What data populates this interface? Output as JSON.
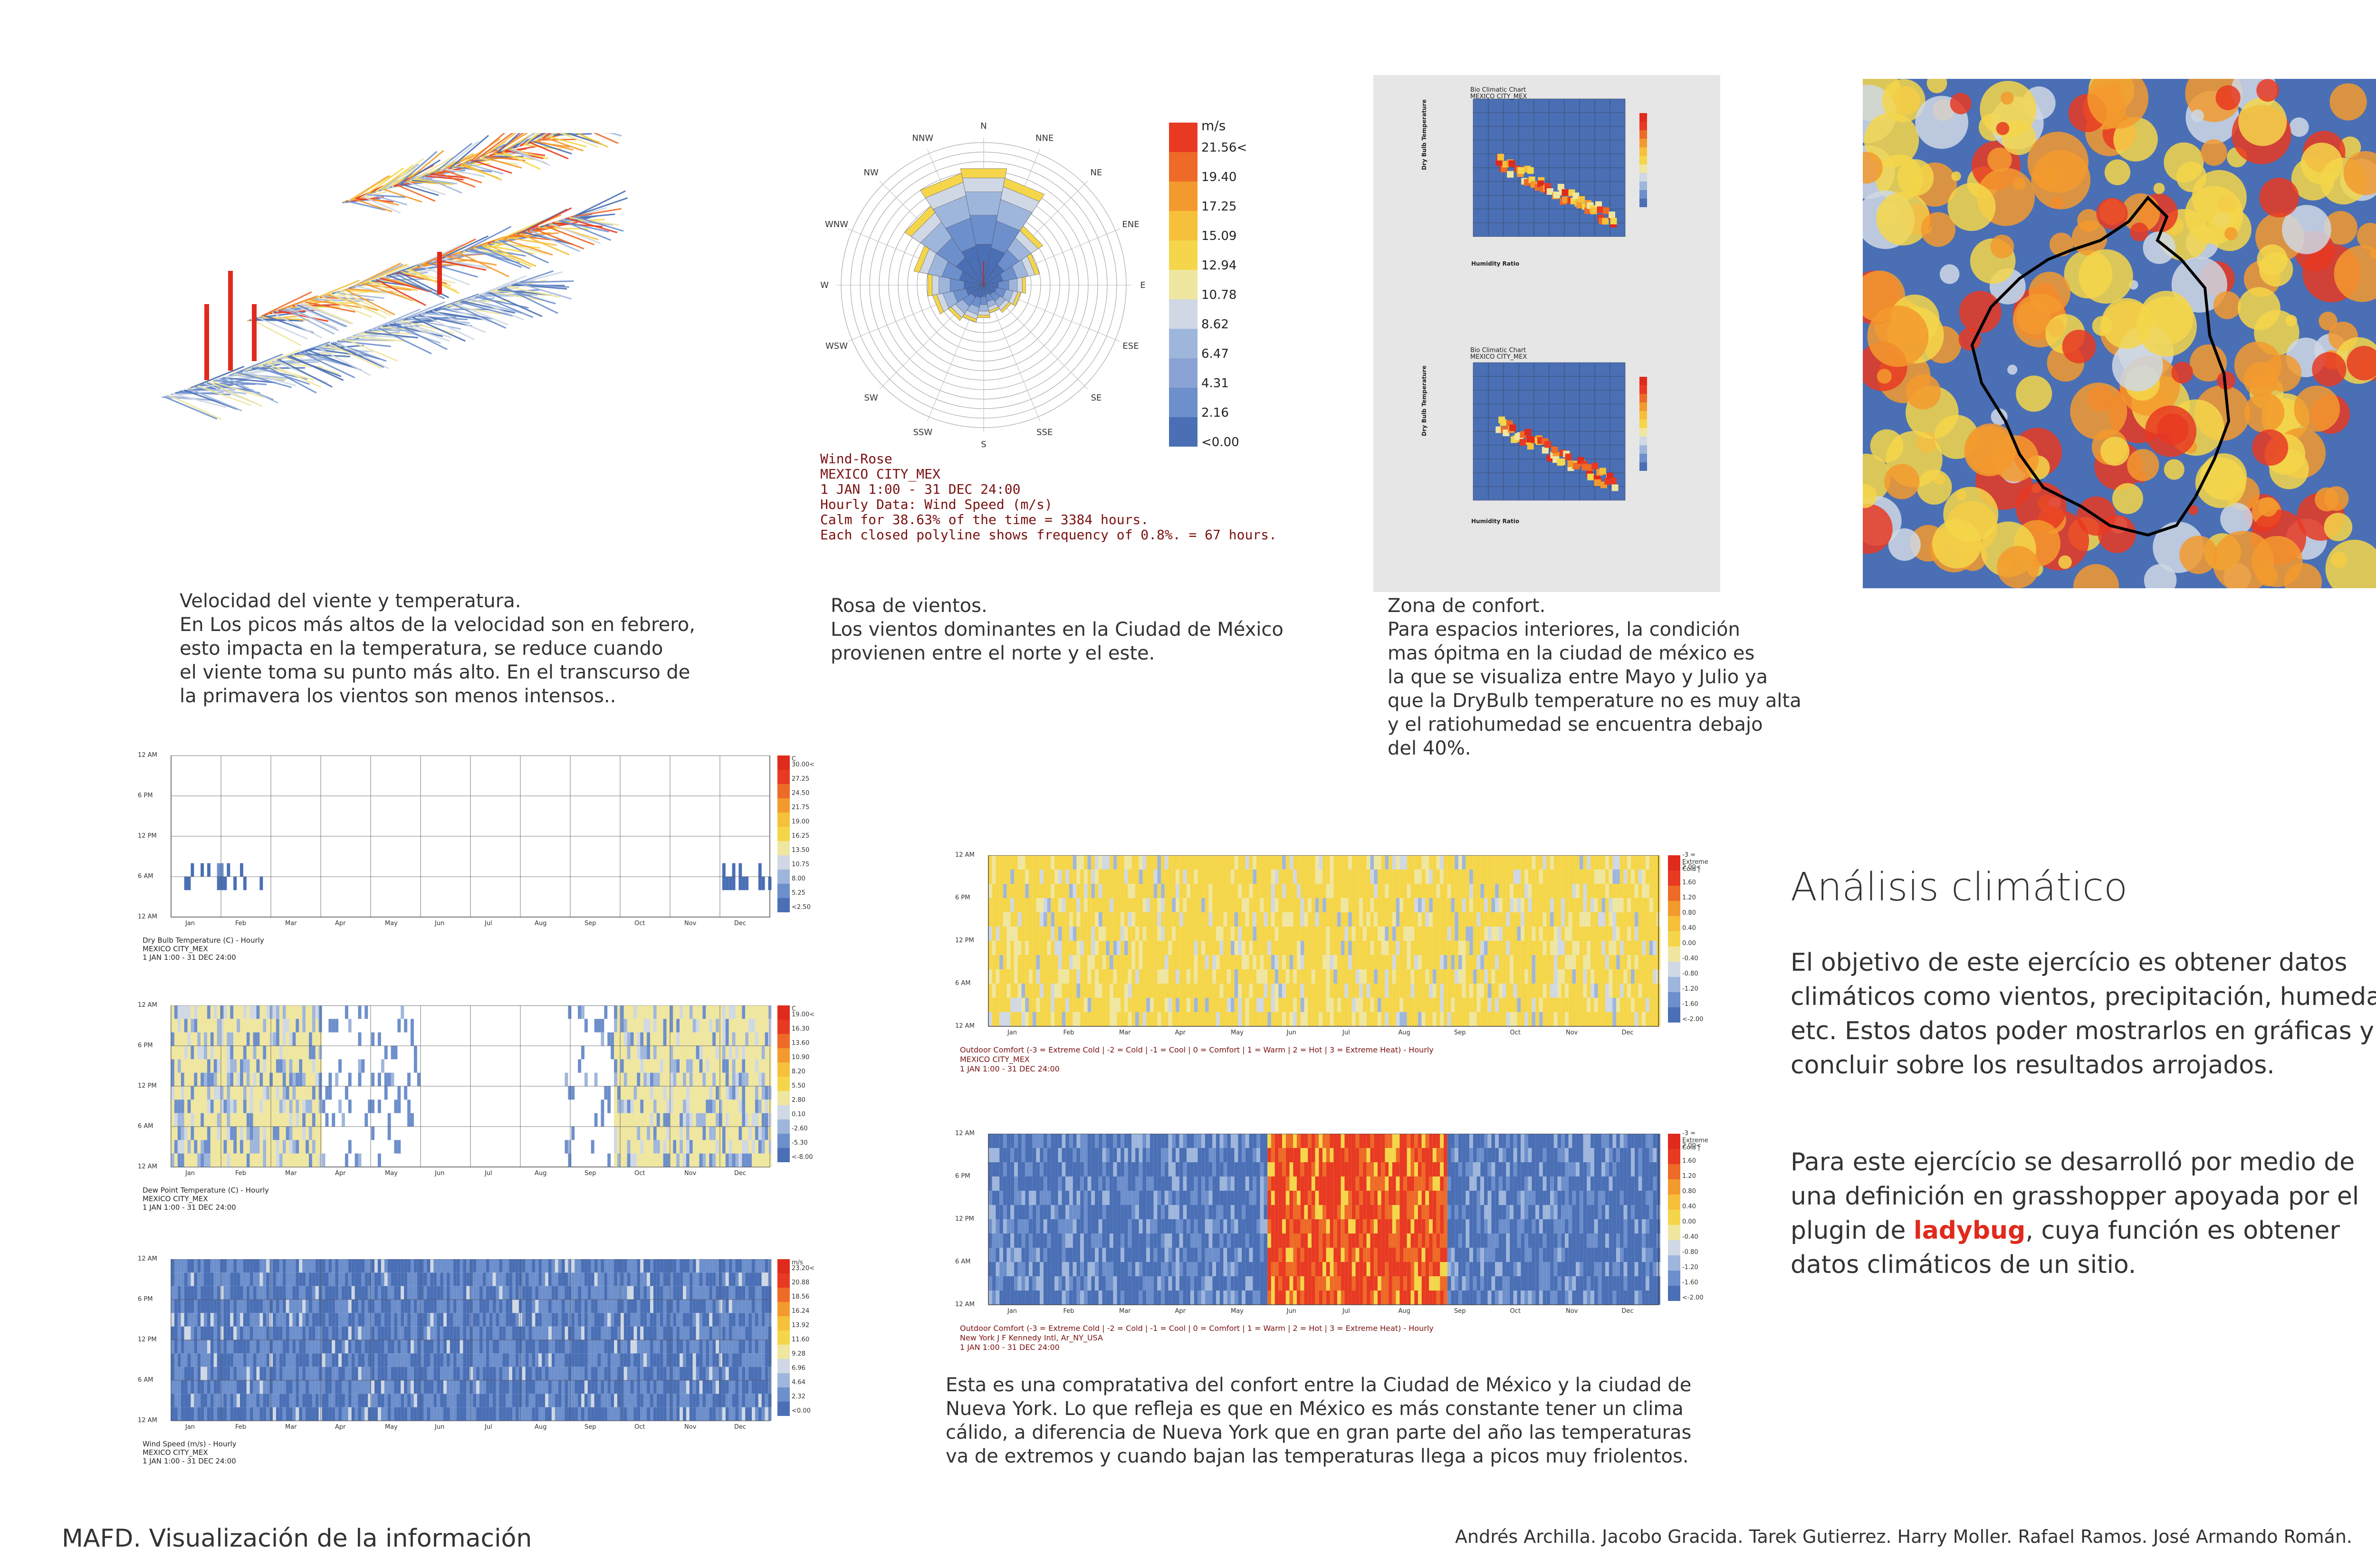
{
  "captions": {
    "wind_temp": "Velocidad del viente y temperatura.\nEn Los picos más altos de la velocidad son en febrero,\nesto impacta en la temperatura, se reduce cuando\nel viente toma su punto más alto. En el transcurso de\nla primavera los vientos son menos intensos..",
    "wind_rose": "Rosa de vientos.\nLos vientos dominantes en la Ciudad de México\nprovienen entre el norte y el este.",
    "comfort_zone": "Zona de confort.\nPara espacios interiores, la condición\nmas ópitma en la ciudad de méxico es\nla que se visualiza entre Mayo y Julio ya\nque la DryBulb temperature no es muy alta\ny el ratiohumedad se encuentra debajo\ndel 40%.",
    "comparison": "Esta es una compratativa del confort entre la Ciudad de México y la ciudad de\nNueva York. Lo que refleja es que en México es más constante tener un clima\ncálido, a diferencia de Nueva York que en gran parte del año las temperaturas\nva de extremos y cuando bajan las temperaturas llega a picos muy friolentos."
  },
  "wind_rose": {
    "directions": [
      "N",
      "NNE",
      "NE",
      "ENE",
      "E",
      "ESE",
      "SE",
      "SSE",
      "S",
      "SSW",
      "SW",
      "WSW",
      "W",
      "WNW",
      "NW",
      "NNW"
    ],
    "unit": "m/s",
    "legend": [
      "21.56<",
      "19.40",
      "17.25",
      "15.09",
      "12.94",
      "10.78",
      "8.62",
      "6.47",
      "4.31",
      "2.16",
      "<0.00"
    ],
    "info": [
      "Wind-Rose",
      "MEXICO CITY_MEX",
      "1 JAN 1:00 - 31 DEC 24:00",
      "Hourly Data: Wind Speed (m/s)",
      "Calm for 38.63% of the time = 3384 hours.",
      "Each closed polyline shows frequency of 0.8%. = 67 hours."
    ]
  },
  "bio_chart": {
    "title1": "Bio Climatic Chart",
    "sub1": "MEXICO CITY_MEX",
    "title2": "Bio Climatic Chart",
    "sub2": "MEXICO CITY_MEX",
    "ylabel": "Dry Bulb Temperature",
    "xlabel": "Humidity Ratio"
  },
  "months": [
    "Jan",
    "Feb",
    "Mar",
    "Apr",
    "May",
    "Jun",
    "Jul",
    "Aug",
    "Sep",
    "Oct",
    "Nov",
    "Dec"
  ],
  "hours": [
    "12 AM",
    "6 PM",
    "12 PM",
    "6 AM",
    "12 AM"
  ],
  "hourly_charts": {
    "dry_bulb": {
      "unit": "C",
      "legend": [
        "30.00<",
        "27.25",
        "24.50",
        "21.75",
        "19.00",
        "16.25",
        "13.50",
        "10.75",
        "8.00",
        "5.25",
        "<2.50"
      ],
      "meta": "Dry Bulb Temperature (C) - Hourly\nMEXICO CITY_MEX\n1 JAN 1:00 - 31 DEC 24:00"
    },
    "dew_point": {
      "unit": "C",
      "legend": [
        "19.00<",
        "16.30",
        "13.60",
        "10.90",
        "8.20",
        "5.50",
        "2.80",
        "0.10",
        "-2.60",
        "-5.30",
        "<-8.00"
      ],
      "meta": "Dew Point Temperature (C) - Hourly\nMEXICO CITY_MEX\n1 JAN 1:00 - 31 DEC 24:00"
    },
    "wind_speed": {
      "unit": "m/s",
      "legend": [
        "23.20<",
        "20.88",
        "18.56",
        "16.24",
        "13.92",
        "11.60",
        "9.28",
        "6.96",
        "4.64",
        "2.32",
        "<0.00"
      ],
      "meta": "Wind Speed (m/s) - Hourly\nMEXICO CITY_MEX\n1 JAN 1:00 - 31 DEC 24:00"
    }
  },
  "comfort_charts": {
    "legend_title": "-3 = Extreme Cold |",
    "legend": [
      "2.00<",
      "1.60",
      "1.20",
      "0.80",
      "0.40",
      "0.00",
      "-0.40",
      "-0.80",
      "-1.20",
      "-1.60",
      "<-2.00"
    ],
    "mexico": {
      "line1": "Outdoor Comfort (-3 = Extreme Cold | -2 = Cold | -1 = Cool | 0 = Comfort | 1 = Warm | 2 = Hot | 3 = Extreme Heat) - Hourly",
      "line2": "MEXICO CITY_MEX",
      "line3": "1 JAN 1:00 - 31 DEC 24:00"
    },
    "newyork": {
      "line1": "Outdoor Comfort (-3 = Extreme Cold | -2 = Cold | -1 = Cool | 0 = Comfort | 1 = Warm | 2 = Hot | 3 = Extreme Heat) - Hourly",
      "line2": "New York J F Kennedy Intl, Ar_NY_USA",
      "line3": "1 JAN 1:00 - 31 DEC 24:00"
    }
  },
  "right_panel": {
    "title": "Análisis climático",
    "para1": "El objetivo de este ejercício es obtener datos climáticos como vientos, precipitación, humedad, etc. Estos datos poder mostrarlos en gráficas y concluir sobre los resultados arrojados.",
    "para2_pre": "Para este ejercício se desarrolló por medio de una definición en grasshopper apoyada por el plugin de ",
    "para2_highlight": "ladybug",
    "para2_post": ", cuya función es obtener datos climáticos de un sitio."
  },
  "footer": {
    "left": "MAFD. Visualización de la información",
    "right": "Andrés Archilla. Jacobo Gracida. Tarek Gutierrez. Harry Moller. Rafael Ramos. José Armando Román."
  },
  "palette": {
    "ladybug": [
      "#4a6fb5",
      "#6d8fcc",
      "#9fb6dc",
      "#cfd8e4",
      "#efe6a0",
      "#f5d64a",
      "#f6c03a",
      "#f39a2e",
      "#ee6a27",
      "#e83a22",
      "#e02a1c"
    ]
  }
}
